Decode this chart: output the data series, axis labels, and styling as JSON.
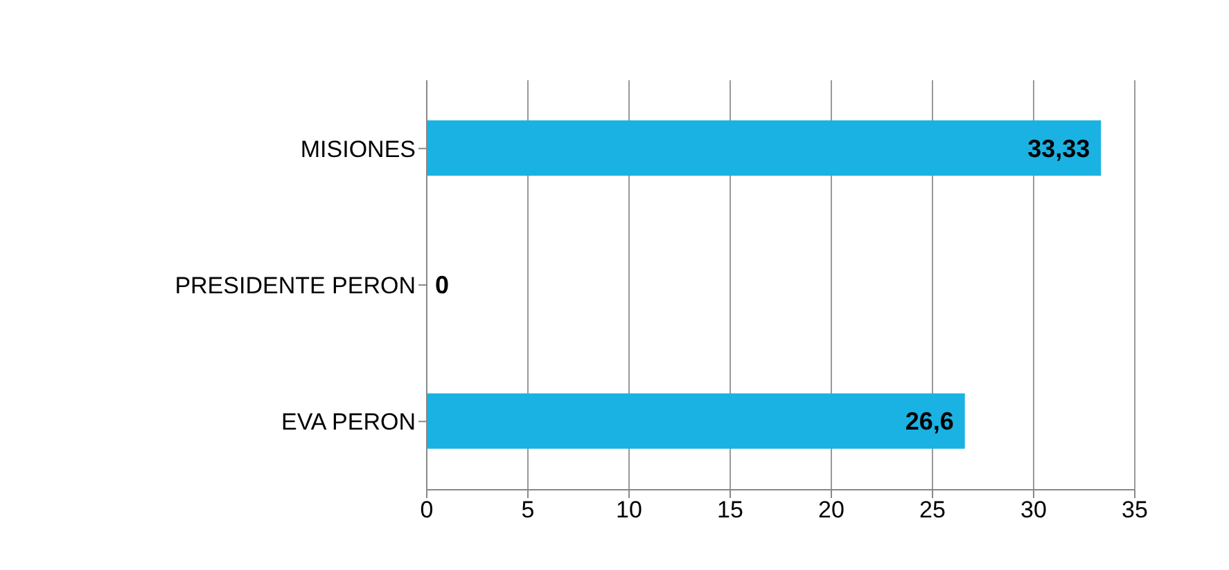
{
  "chart_data": {
    "type": "bar",
    "orientation": "horizontal",
    "categories": [
      "MISIONES",
      "PRESIDENTE PERON",
      "EVA PERON"
    ],
    "values": [
      33.33,
      0,
      26.6
    ],
    "color": "#1ab2e3",
    "value_labels": [
      "33,33",
      "0",
      "26,6"
    ],
    "xlim": [
      0,
      35
    ],
    "xticks": [
      0,
      5,
      10,
      15,
      20,
      25,
      30,
      35
    ],
    "grid": "x"
  }
}
